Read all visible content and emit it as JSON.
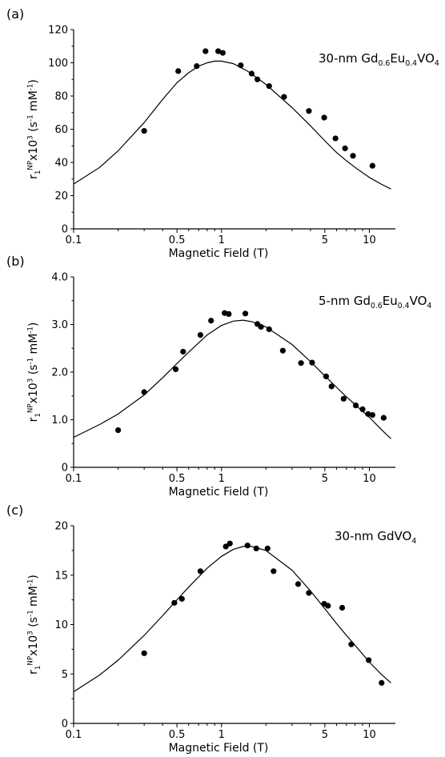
{
  "chart_data": [
    {
      "type": "scatter",
      "panel_label": "(a)",
      "title_parts": [
        [
          "30-nm Gd",
          ""
        ],
        [
          "0.6",
          "sub"
        ],
        [
          "Eu",
          ""
        ],
        [
          "0.4",
          "sub"
        ],
        [
          "VO",
          ""
        ],
        [
          "4",
          "sub"
        ]
      ],
      "xlabel": "Magnetic Field (T)",
      "ylabel_parts": [
        [
          "r",
          ""
        ],
        [
          "1",
          "sub"
        ],
        [
          "NP",
          "sup"
        ],
        [
          "x10",
          ""
        ],
        [
          "3",
          "sup"
        ],
        [
          " (s",
          ""
        ],
        [
          "-1",
          "sup"
        ],
        [
          " mM",
          ""
        ],
        [
          "-1",
          "sup"
        ],
        [
          ")",
          ""
        ]
      ],
      "x_scale": "log",
      "xlim": [
        0.1,
        15
      ],
      "ylim": [
        0,
        120
      ],
      "x_ticks": [
        0.1,
        0.5,
        1,
        5,
        10
      ],
      "x_tick_labels": [
        "0.1",
        "0.5",
        "1",
        "5",
        "10"
      ],
      "y_ticks": [
        0,
        20,
        40,
        60,
        80,
        100,
        120
      ],
      "y_tick_labels": [
        "0",
        "20",
        "40",
        "60",
        "80",
        "100",
        "120"
      ],
      "points": [
        {
          "x": 0.3,
          "y": 59
        },
        {
          "x": 0.51,
          "y": 95
        },
        {
          "x": 0.68,
          "y": 98
        },
        {
          "x": 0.78,
          "y": 107
        },
        {
          "x": 0.95,
          "y": 107
        },
        {
          "x": 1.02,
          "y": 106
        },
        {
          "x": 1.35,
          "y": 98.5
        },
        {
          "x": 1.6,
          "y": 93.5
        },
        {
          "x": 1.75,
          "y": 90
        },
        {
          "x": 2.1,
          "y": 86
        },
        {
          "x": 2.65,
          "y": 79.5
        },
        {
          "x": 3.9,
          "y": 71
        },
        {
          "x": 4.95,
          "y": 67
        },
        {
          "x": 5.9,
          "y": 54.5
        },
        {
          "x": 6.85,
          "y": 48.5
        },
        {
          "x": 7.75,
          "y": 44
        },
        {
          "x": 10.5,
          "y": 38
        }
      ],
      "fit_curve": {
        "x": [
          0.1,
          0.15,
          0.2,
          0.3,
          0.4,
          0.5,
          0.6,
          0.7,
          0.8,
          0.9,
          1.0,
          1.2,
          1.5,
          2,
          3,
          4,
          5,
          6,
          7,
          8,
          10,
          12,
          14
        ],
        "y": [
          27,
          37,
          47,
          64,
          78,
          88,
          94,
          98,
          100,
          101,
          101,
          99.5,
          95,
          87,
          73,
          62,
          53,
          46,
          41,
          37,
          31,
          27,
          24
        ]
      }
    },
    {
      "type": "scatter",
      "panel_label": "(b)",
      "title_parts": [
        [
          "5-nm Gd",
          ""
        ],
        [
          "0.6",
          "sub"
        ],
        [
          "Eu",
          ""
        ],
        [
          "0.4",
          "sub"
        ],
        [
          "VO",
          ""
        ],
        [
          "4",
          "sub"
        ]
      ],
      "xlabel": "Magnetic Field (T)",
      "ylabel_parts": [
        [
          "r",
          ""
        ],
        [
          "1",
          "sub"
        ],
        [
          "NP",
          "sup"
        ],
        [
          "x10",
          ""
        ],
        [
          "3",
          "sup"
        ],
        [
          " (s",
          ""
        ],
        [
          "-1",
          "sup"
        ],
        [
          " mM",
          ""
        ],
        [
          "-1",
          "sup"
        ],
        [
          ")",
          ""
        ]
      ],
      "x_scale": "log",
      "xlim": [
        0.1,
        15
      ],
      "ylim": [
        0,
        4.0
      ],
      "x_ticks": [
        0.1,
        0.5,
        1,
        5,
        10
      ],
      "x_tick_labels": [
        "0.1",
        "0.5",
        "1",
        "5",
        "10"
      ],
      "y_ticks": [
        0,
        1,
        2,
        3,
        4
      ],
      "y_tick_labels": [
        "0",
        "1.0",
        "2.0",
        "3.0",
        "4.0"
      ],
      "points": [
        {
          "x": 0.2,
          "y": 0.78
        },
        {
          "x": 0.3,
          "y": 1.58
        },
        {
          "x": 0.49,
          "y": 2.06
        },
        {
          "x": 0.55,
          "y": 2.43
        },
        {
          "x": 0.72,
          "y": 2.78
        },
        {
          "x": 0.85,
          "y": 3.08
        },
        {
          "x": 1.05,
          "y": 3.24
        },
        {
          "x": 1.12,
          "y": 3.22
        },
        {
          "x": 1.45,
          "y": 3.23
        },
        {
          "x": 1.75,
          "y": 3.01
        },
        {
          "x": 1.85,
          "y": 2.95
        },
        {
          "x": 2.1,
          "y": 2.9
        },
        {
          "x": 2.6,
          "y": 2.45
        },
        {
          "x": 3.45,
          "y": 2.19
        },
        {
          "x": 4.1,
          "y": 2.2
        },
        {
          "x": 5.1,
          "y": 1.91
        },
        {
          "x": 5.55,
          "y": 1.7
        },
        {
          "x": 6.7,
          "y": 1.44
        },
        {
          "x": 8.1,
          "y": 1.3
        },
        {
          "x": 9.0,
          "y": 1.22
        },
        {
          "x": 9.8,
          "y": 1.12
        },
        {
          "x": 10.5,
          "y": 1.1
        },
        {
          "x": 12.5,
          "y": 1.04
        }
      ],
      "fit_curve": {
        "x": [
          0.1,
          0.15,
          0.2,
          0.3,
          0.4,
          0.5,
          0.6,
          0.8,
          1.0,
          1.2,
          1.4,
          1.6,
          2,
          3,
          4,
          5,
          6,
          7,
          8,
          10,
          12,
          14
        ],
        "y": [
          0.63,
          0.9,
          1.12,
          1.52,
          1.88,
          2.18,
          2.42,
          2.78,
          2.98,
          3.07,
          3.09,
          3.06,
          2.95,
          2.58,
          2.22,
          1.92,
          1.68,
          1.48,
          1.32,
          1.05,
          0.8,
          0.6
        ]
      }
    },
    {
      "type": "scatter",
      "panel_label": "(c)",
      "title_parts": [
        [
          "30-nm GdVO",
          ""
        ],
        [
          "4",
          "sub"
        ]
      ],
      "xlabel": "Magnetic Field (T)",
      "ylabel_parts": [
        [
          "r",
          ""
        ],
        [
          "1",
          "sub"
        ],
        [
          "NP",
          "sup"
        ],
        [
          "x10",
          ""
        ],
        [
          "3",
          "sup"
        ],
        [
          " (s",
          ""
        ],
        [
          "-1",
          "sup"
        ],
        [
          " mM",
          ""
        ],
        [
          "-1",
          "sup"
        ],
        [
          ")",
          ""
        ]
      ],
      "x_scale": "log",
      "xlim": [
        0.1,
        15
      ],
      "ylim": [
        0,
        20
      ],
      "x_ticks": [
        0.1,
        0.5,
        1,
        5,
        10
      ],
      "x_tick_labels": [
        "0.1",
        "0.5",
        "1",
        "5",
        "10"
      ],
      "y_ticks": [
        0,
        5,
        10,
        15,
        20
      ],
      "y_tick_labels": [
        "0",
        "5",
        "10",
        "15",
        "20"
      ],
      "points": [
        {
          "x": 0.3,
          "y": 7.1
        },
        {
          "x": 0.48,
          "y": 12.2
        },
        {
          "x": 0.54,
          "y": 12.6
        },
        {
          "x": 0.72,
          "y": 15.4
        },
        {
          "x": 1.07,
          "y": 17.9
        },
        {
          "x": 1.14,
          "y": 18.2
        },
        {
          "x": 1.5,
          "y": 18
        },
        {
          "x": 1.72,
          "y": 17.7
        },
        {
          "x": 2.05,
          "y": 17.7
        },
        {
          "x": 2.25,
          "y": 15.4
        },
        {
          "x": 3.3,
          "y": 14.1
        },
        {
          "x": 3.9,
          "y": 13.2
        },
        {
          "x": 4.95,
          "y": 12.1
        },
        {
          "x": 5.25,
          "y": 11.9
        },
        {
          "x": 6.55,
          "y": 11.7
        },
        {
          "x": 7.55,
          "y": 8
        },
        {
          "x": 9.9,
          "y": 6.4
        },
        {
          "x": 12.1,
          "y": 4.1
        }
      ],
      "fit_curve": {
        "x": [
          0.1,
          0.15,
          0.2,
          0.3,
          0.4,
          0.5,
          0.6,
          0.8,
          1.0,
          1.2,
          1.4,
          1.6,
          2,
          3,
          4,
          5,
          6,
          7,
          8,
          10,
          12,
          14
        ],
        "y": [
          3.2,
          4.9,
          6.4,
          8.9,
          10.9,
          12.5,
          13.8,
          15.7,
          16.9,
          17.6,
          17.9,
          17.9,
          17.5,
          15.5,
          13.4,
          11.6,
          10.1,
          8.9,
          7.9,
          6.2,
          5.0,
          4.1
        ]
      }
    }
  ]
}
